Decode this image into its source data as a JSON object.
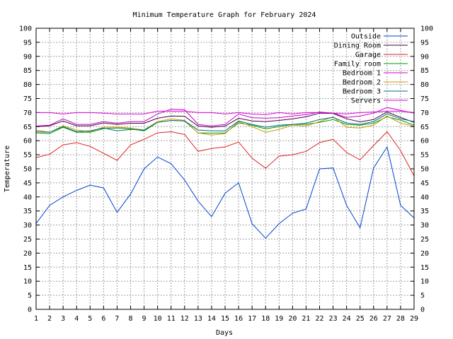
{
  "chart_data": {
    "type": "line",
    "title": "Minimum Temperature Graph for February 2024",
    "xlabel": "Days",
    "ylabel": "Temperature",
    "xlim": [
      1,
      29
    ],
    "ylim": [
      0,
      100
    ],
    "ytick_step": 5,
    "grid": true,
    "legend_position": "top-right",
    "x": [
      1,
      2,
      3,
      4,
      5,
      6,
      7,
      8,
      9,
      10,
      11,
      12,
      13,
      14,
      15,
      16,
      17,
      18,
      19,
      20,
      21,
      22,
      23,
      24,
      25,
      26,
      27,
      28,
      29
    ],
    "x_ticks": [
      "1",
      "2",
      "3",
      "4",
      "5",
      "6",
      "7",
      "8",
      "9",
      "10",
      "11",
      "12",
      "13",
      "14",
      "15",
      "16",
      "17",
      "18",
      "19",
      "20",
      "21",
      "22",
      "23",
      "24",
      "25",
      "26",
      "27",
      "28",
      "29"
    ],
    "y_ticks": [
      "0",
      "5",
      "10",
      "15",
      "20",
      "25",
      "30",
      "35",
      "40",
      "45",
      "50",
      "55",
      "60",
      "65",
      "70",
      "75",
      "80",
      "85",
      "90",
      "95",
      "100"
    ],
    "series": [
      {
        "name": "Outside",
        "color": "#0044cc",
        "values": [
          30.5,
          37,
          40,
          42.3,
          44.2,
          43.2,
          34.5,
          41,
          50,
          54.2,
          51.8,
          46,
          38.5,
          33,
          41.3,
          45,
          30.5,
          25.3,
          30.5,
          34.2,
          35.7,
          50,
          50.3,
          37,
          29,
          50.3,
          57.8,
          37,
          32.5
        ]
      },
      {
        "name": "Dining Room",
        "color": "#400040",
        "values": [
          65,
          65.3,
          67,
          65.3,
          65.3,
          66.3,
          65.8,
          66.2,
          66.2,
          68,
          68.8,
          68.7,
          65.2,
          64.8,
          65.2,
          68,
          67,
          66.8,
          67.2,
          67.8,
          68.5,
          69.8,
          69.7,
          67.8,
          66.7,
          67.5,
          70.2,
          68.3,
          66.5
        ]
      },
      {
        "name": "Garage",
        "color": "#dd2222",
        "values": [
          54,
          55.2,
          58.5,
          59.3,
          58,
          55.5,
          53,
          58.5,
          60.5,
          62.8,
          63.2,
          62.2,
          56.2,
          57.2,
          57.8,
          59.5,
          53.8,
          50.2,
          54.5,
          55,
          56.2,
          59.3,
          60.5,
          55.8,
          53.2,
          58.3,
          63.2,
          56.5,
          47.5
        ]
      },
      {
        "name": "Family room",
        "color": "#009900",
        "values": [
          62.8,
          62.5,
          64.8,
          63,
          63,
          64.3,
          64.5,
          64.2,
          63.5,
          66.5,
          67.2,
          67,
          62.8,
          62.7,
          62.8,
          66.3,
          65.5,
          64.2,
          65,
          65.8,
          65.8,
          66.5,
          67.5,
          65.8,
          65.5,
          66.2,
          68.5,
          67.3,
          65.5
        ]
      },
      {
        "name": "Bedroom 1",
        "color": "#cc00cc",
        "values": [
          65.2,
          65.5,
          67.8,
          65.8,
          65.8,
          66.8,
          66.2,
          66.8,
          66.8,
          69.5,
          71.2,
          71,
          65.8,
          65.2,
          65.8,
          69.5,
          68.2,
          68,
          68.2,
          68.8,
          69.3,
          70.2,
          69.8,
          68.3,
          68.8,
          69.8,
          71.8,
          70.8,
          69.8
        ]
      },
      {
        "name": "Bedroom 2",
        "color": "#cc9900",
        "values": [
          63.8,
          63,
          65.3,
          63.8,
          63.2,
          64.8,
          64.8,
          64.5,
          63.8,
          66.8,
          67.8,
          67.2,
          62.8,
          62,
          62.5,
          66.8,
          65,
          63,
          64,
          65.5,
          65.2,
          66.8,
          68.5,
          64.8,
          64.5,
          65.5,
          68.8,
          66.2,
          65.2
        ]
      },
      {
        "name": "Bedroom 3",
        "color": "#007080",
        "values": [
          63.2,
          63,
          65,
          63.2,
          63.5,
          64.5,
          63.5,
          64,
          63.8,
          66.5,
          67.2,
          67,
          63.8,
          63.5,
          63.5,
          67,
          65.8,
          64.8,
          65.5,
          65.8,
          66.2,
          67.5,
          68.3,
          66.3,
          65.8,
          66.8,
          69.5,
          67.8,
          66.8
        ]
      },
      {
        "name": "Servers",
        "color": "#dd00dd",
        "values": [
          70,
          70,
          69.5,
          70,
          70,
          69.8,
          69.5,
          69.5,
          69.5,
          70.5,
          70.5,
          70.5,
          70,
          70,
          69.5,
          70,
          69.5,
          69.3,
          70,
          69.5,
          70,
          70,
          69.8,
          69.5,
          70,
          70.2,
          70.5,
          70.5,
          70
        ]
      }
    ]
  }
}
